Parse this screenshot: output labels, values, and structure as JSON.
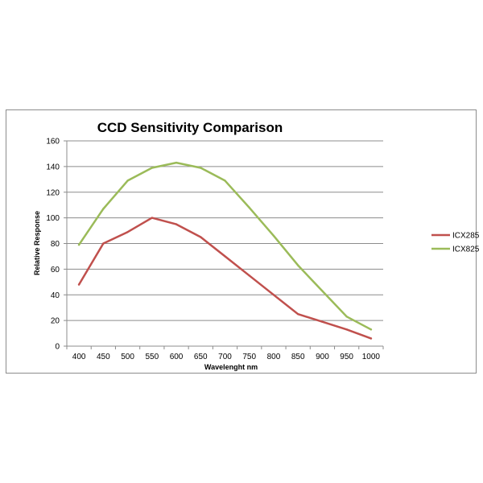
{
  "chart_data": {
    "type": "line",
    "title": "CCD Sensitivity Comparison",
    "xlabel": "Wavelenght nm",
    "ylabel": "Relative Response",
    "x": [
      400,
      450,
      500,
      550,
      600,
      650,
      700,
      750,
      800,
      850,
      900,
      950,
      1000
    ],
    "ylim": [
      0,
      160
    ],
    "yticks": [
      0,
      20,
      40,
      60,
      80,
      100,
      120,
      140,
      160
    ],
    "grid": "horizontal",
    "legend_position": "right",
    "series": [
      {
        "name": "ICX285",
        "color": "#c0504d",
        "values": [
          48,
          80,
          89,
          100,
          95,
          85,
          70,
          55,
          40,
          25,
          19,
          13,
          6
        ]
      },
      {
        "name": "ICX825",
        "color": "#9bbb59",
        "values": [
          79,
          107,
          129,
          139,
          143,
          139,
          129,
          108,
          86,
          63,
          43,
          23,
          13
        ]
      }
    ]
  }
}
